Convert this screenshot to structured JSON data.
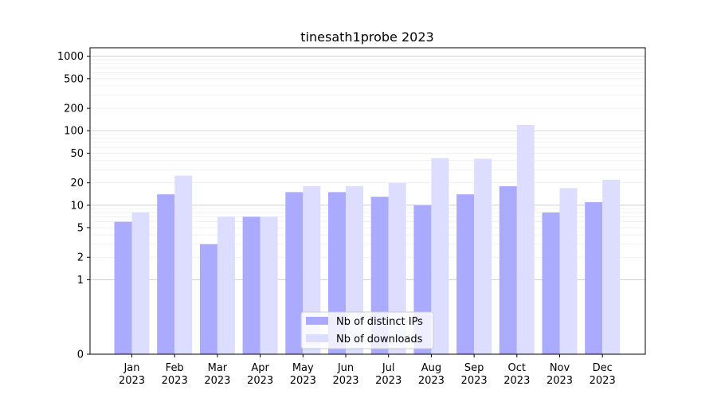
{
  "chart_data": {
    "type": "bar",
    "title": "tinesath1probe 2023",
    "xlabel": "",
    "ylabel": "",
    "categories": [
      [
        "Jan",
        "2023"
      ],
      [
        "Feb",
        "2023"
      ],
      [
        "Mar",
        "2023"
      ],
      [
        "Apr",
        "2023"
      ],
      [
        "May",
        "2023"
      ],
      [
        "Jun",
        "2023"
      ],
      [
        "Jul",
        "2023"
      ],
      [
        "Aug",
        "2023"
      ],
      [
        "Sep",
        "2023"
      ],
      [
        "Oct",
        "2023"
      ],
      [
        "Nov",
        "2023"
      ],
      [
        "Dec",
        "2023"
      ]
    ],
    "series": [
      {
        "name": "Nb of distinct IPs",
        "color": "#aaaaff",
        "values": [
          6,
          14,
          3,
          7,
          15,
          15,
          13,
          10,
          14,
          18,
          8,
          11
        ]
      },
      {
        "name": "Nb of downloads",
        "color": "#ddddff",
        "values": [
          8,
          25,
          7,
          7,
          18,
          18,
          20,
          43,
          42,
          120,
          17,
          22
        ]
      }
    ],
    "y_scale": "symlog",
    "ylim": [
      0,
      1300
    ],
    "yticks": [
      0,
      1,
      2,
      5,
      10,
      20,
      50,
      100,
      200,
      500,
      1000
    ],
    "grid": true,
    "legend": "lower center"
  }
}
